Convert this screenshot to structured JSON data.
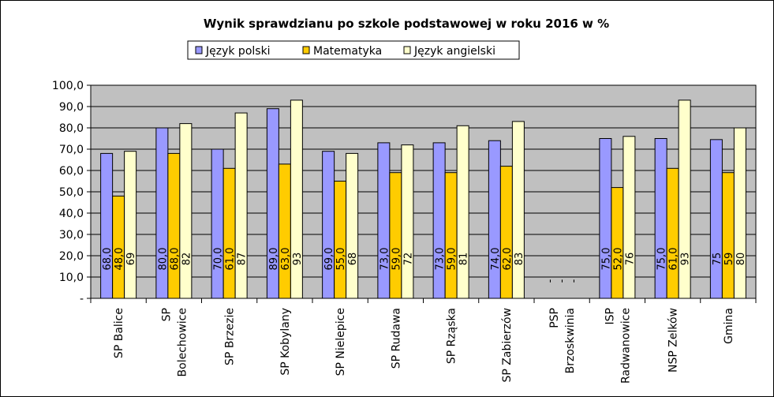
{
  "chart_data": {
    "type": "bar",
    "title": "Wynik sprawdzianu po szkole podstawowej w roku 2016 w %",
    "categories": [
      [
        "SP Balice"
      ],
      [
        "SP",
        "Bolechowice"
      ],
      [
        "SP Brzezie"
      ],
      [
        "SP Kobylany"
      ],
      [
        "SP Nielepice"
      ],
      [
        "SP Rudawa"
      ],
      [
        "SP Rząska"
      ],
      [
        "SP Zabierzów"
      ],
      [
        "PSP",
        "Brzoskwinia"
      ],
      [
        "ISP",
        "Radwanowice"
      ],
      [
        "NSP Zelków"
      ],
      [
        "Gmina"
      ]
    ],
    "series": [
      {
        "name": "Język polski",
        "color": "#9999ff",
        "values": [
          68.0,
          80.0,
          70.0,
          89.0,
          69.0,
          73.0,
          73.0,
          74.0,
          0,
          75.0,
          75.0,
          74.5
        ],
        "labels": [
          "68,0",
          "80,0",
          "70,0",
          "89,0",
          "69,0",
          "73,0",
          "73,0",
          "74,0",
          "-",
          "75,0",
          "75,0",
          "75"
        ]
      },
      {
        "name": "Matematyka",
        "color": "#ffcc00",
        "values": [
          48.0,
          68.0,
          61.0,
          63.0,
          55.0,
          59.0,
          59.0,
          62.0,
          0,
          52.0,
          61.0,
          59.0
        ],
        "labels": [
          "48,0",
          "68,0",
          "61,0",
          "63,0",
          "55,0",
          "59,0",
          "59,0",
          "62,0",
          "-",
          "52,0",
          "61,0",
          "59"
        ]
      },
      {
        "name": "Język angielski",
        "color": "#ffffcc",
        "values": [
          69,
          82,
          87,
          93,
          68,
          72,
          81,
          83,
          0,
          76,
          93,
          80
        ],
        "labels": [
          "69",
          "82",
          "87",
          "93",
          "68",
          "72",
          "81",
          "83",
          "-",
          "76",
          "93",
          "80"
        ]
      }
    ],
    "ylim": [
      0,
      100
    ],
    "yticks": [
      "-",
      "10,0",
      "20,0",
      "30,0",
      "40,0",
      "50,0",
      "60,0",
      "70,0",
      "80,0",
      "90,0",
      "100,0"
    ],
    "grid": true,
    "legend_position": "top",
    "plot_background": "#c0c0c0"
  }
}
